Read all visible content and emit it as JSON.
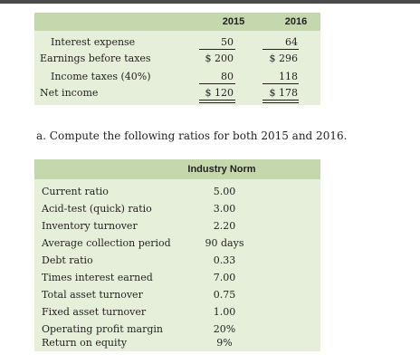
{
  "income_table": {
    "years": [
      "2015",
      "2016"
    ],
    "rows": [
      {
        "label": "Interest expense",
        "v2015": "50",
        "v2016": "64"
      },
      {
        "label": "Earnings before taxes",
        "v2015": "$  200",
        "v2016": "$  296"
      },
      {
        "label": "Income taxes (40%)",
        "v2015": "80",
        "v2016": "118"
      },
      {
        "label": "Net income",
        "v2015": "$  120",
        "v2016": "$  178"
      }
    ]
  },
  "question": "a. Compute the following ratios for both 2015 and 2016.",
  "ratio_table": {
    "header": "Industry Norm",
    "rows": [
      {
        "label": "Current ratio",
        "value": "5.00"
      },
      {
        "label": "Acid-test (quick) ratio",
        "value": "3.00"
      },
      {
        "label": "Inventory turnover",
        "value": "2.20"
      },
      {
        "label": "Average collection period",
        "value": "90 days"
      },
      {
        "label": "Debt ratio",
        "value": "0.33"
      },
      {
        "label": "Times interest earned",
        "value": "7.00"
      },
      {
        "label": "Total asset turnover",
        "value": "0.75"
      },
      {
        "label": "Fixed asset turnover",
        "value": "1.00"
      },
      {
        "label": "Operating profit margin",
        "value": "20%"
      },
      {
        "label": "Return on equity",
        "value": "9%"
      }
    ]
  }
}
